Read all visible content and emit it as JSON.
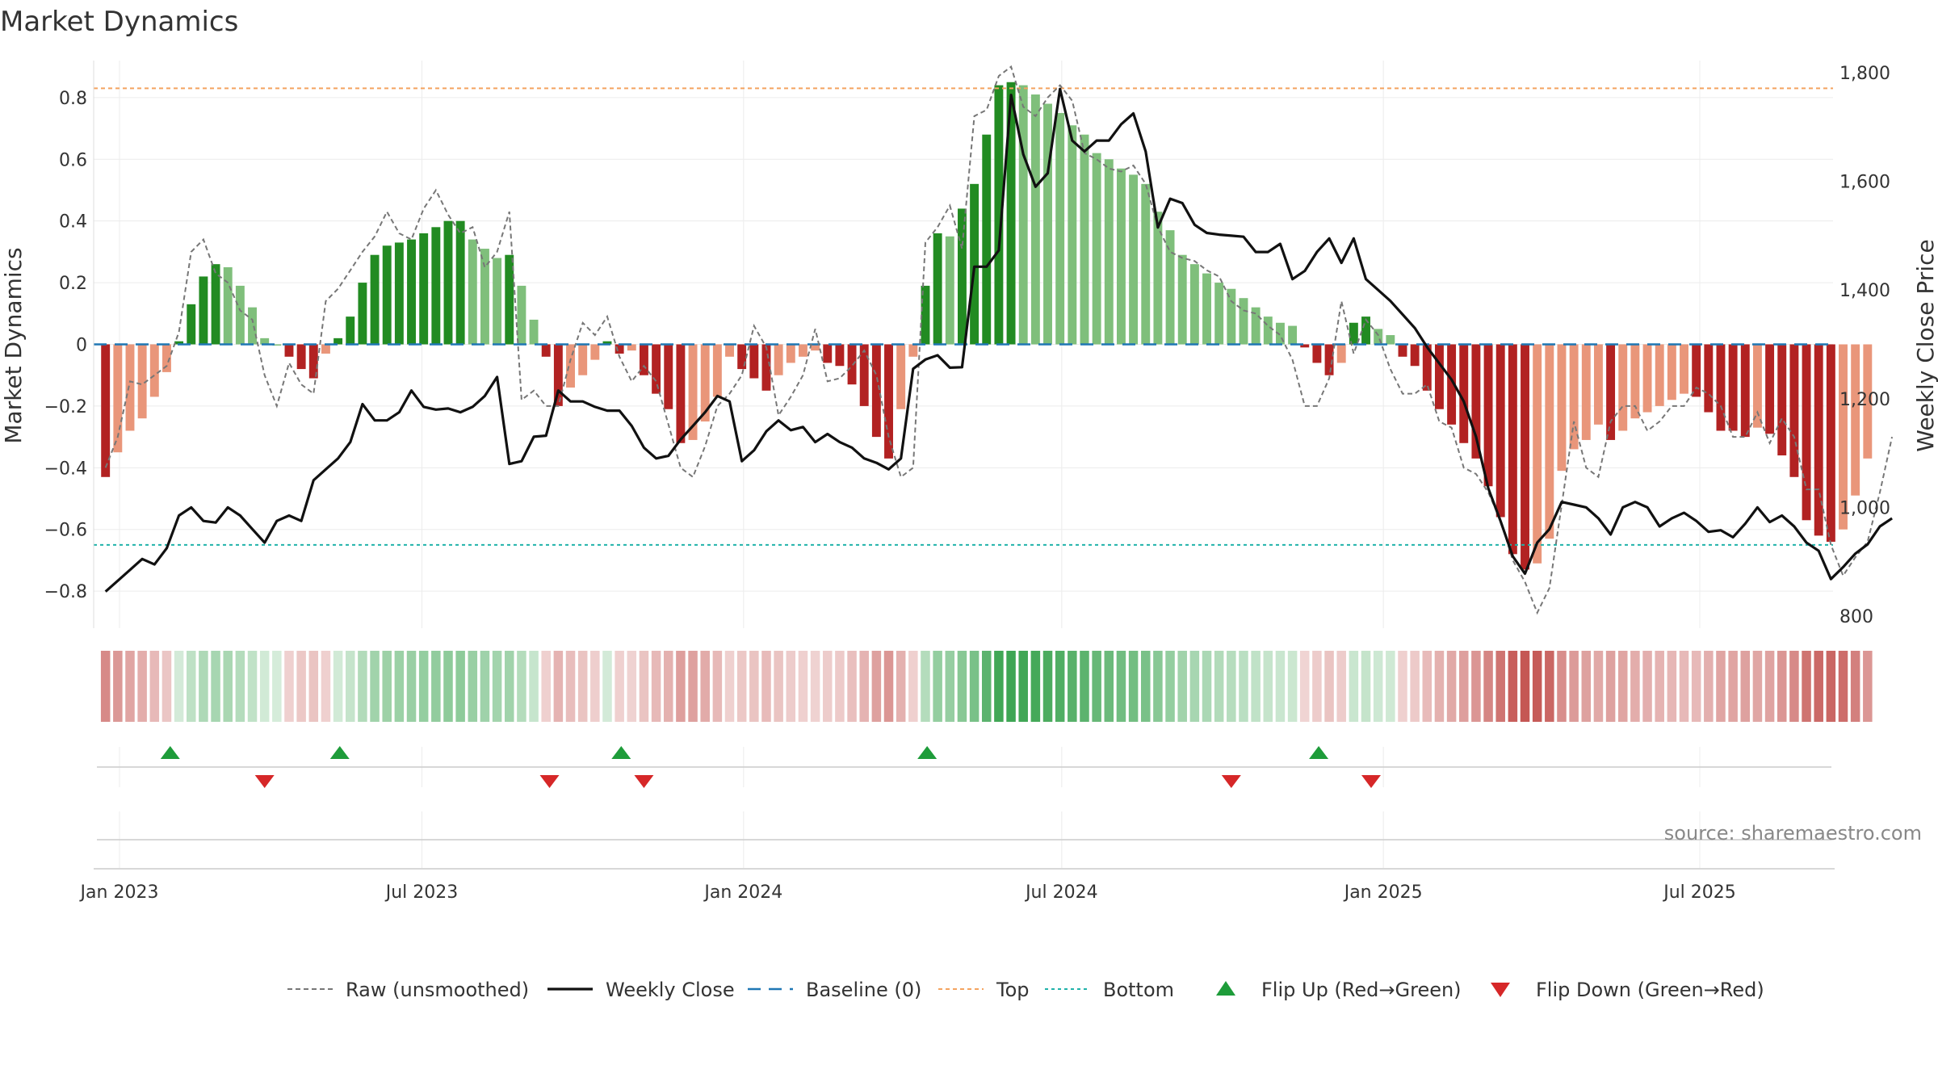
{
  "chart_data": {
    "type": "bar",
    "title": "Market Dynamics",
    "ylabel": "Market Dynamics",
    "y2label": "Weekly Close Price",
    "ylim": [
      -0.92,
      0.92
    ],
    "y2lim": [
      800,
      1800
    ],
    "x_start": "2023-01-01",
    "x_step_days": 7,
    "x_ticks": [
      {
        "date": "2023-01-09",
        "label": "Jan 2023"
      },
      {
        "date": "2023-07-01",
        "label": "Jul 2023"
      },
      {
        "date": "2024-01-01",
        "label": "Jan 2024"
      },
      {
        "date": "2024-07-01",
        "label": "Jul 2024"
      },
      {
        "date": "2025-01-01",
        "label": "Jan 2025"
      },
      {
        "date": "2025-07-01",
        "label": "Jul 2025"
      }
    ],
    "y_ticks": [
      -0.8,
      -0.6,
      -0.4,
      -0.2,
      0,
      0.2,
      0.4,
      0.6,
      0.8
    ],
    "y_tick_labels": [
      "−0.8",
      "−0.6",
      "−0.4",
      "−0.2",
      "0",
      "0.2",
      "0.4",
      "0.6",
      "0.8"
    ],
    "y2_ticks": [
      800,
      1000,
      1200,
      1400,
      1600,
      1800
    ],
    "y2_tick_labels": [
      "800",
      "1,000",
      "1,200",
      "1,400",
      "1,600",
      "1,800"
    ],
    "top_level": 0.83,
    "bottom_level": -0.65,
    "smoothed": [
      -0.43,
      -0.35,
      -0.28,
      -0.24,
      -0.17,
      -0.09,
      0.01,
      0.13,
      0.22,
      0.26,
      0.25,
      0.19,
      0.12,
      0.02,
      0.0,
      -0.04,
      -0.08,
      -0.11,
      -0.03,
      0.02,
      0.09,
      0.2,
      0.29,
      0.32,
      0.33,
      0.34,
      0.36,
      0.38,
      0.4,
      0.4,
      0.34,
      0.31,
      0.28,
      0.29,
      0.19,
      0.08,
      -0.04,
      -0.2,
      -0.14,
      -0.1,
      -0.05,
      0.01,
      -0.03,
      -0.02,
      -0.1,
      -0.16,
      -0.21,
      -0.32,
      -0.31,
      -0.25,
      -0.17,
      -0.04,
      -0.08,
      -0.11,
      -0.15,
      -0.1,
      -0.06,
      -0.04,
      -0.02,
      -0.06,
      -0.07,
      -0.13,
      -0.2,
      -0.3,
      -0.37,
      -0.21,
      -0.04,
      0.19,
      0.36,
      0.35,
      0.44,
      0.52,
      0.68,
      0.84,
      0.85,
      0.84,
      0.81,
      0.78,
      0.75,
      0.71,
      0.68,
      0.62,
      0.6,
      0.57,
      0.55,
      0.52,
      0.43,
      0.37,
      0.29,
      0.26,
      0.23,
      0.2,
      0.18,
      0.15,
      0.12,
      0.09,
      0.07,
      0.06,
      -0.01,
      -0.06,
      -0.1,
      -0.06,
      0.07,
      0.09,
      0.05,
      0.03,
      -0.04,
      -0.07,
      -0.15,
      -0.21,
      -0.26,
      -0.32,
      -0.37,
      -0.46,
      -0.56,
      -0.68,
      -0.73,
      -0.71,
      -0.63,
      -0.41,
      -0.34,
      -0.31,
      -0.26,
      -0.31,
      -0.28,
      -0.24,
      -0.22,
      -0.2,
      -0.18,
      -0.16,
      -0.17,
      -0.22,
      -0.28,
      -0.28,
      -0.3,
      -0.27,
      -0.29,
      -0.36,
      -0.43,
      -0.57,
      -0.62,
      -0.64,
      -0.6,
      -0.49,
      -0.37
    ],
    "raw": [
      -0.4,
      -0.3,
      -0.12,
      -0.13,
      -0.1,
      -0.07,
      0.04,
      0.3,
      0.34,
      0.23,
      0.2,
      0.11,
      0.08,
      -0.1,
      -0.2,
      -0.06,
      -0.13,
      -0.16,
      0.14,
      0.18,
      0.24,
      0.3,
      0.35,
      0.43,
      0.36,
      0.34,
      0.44,
      0.5,
      0.42,
      0.36,
      0.38,
      0.25,
      0.3,
      0.43,
      -0.18,
      -0.15,
      -0.2,
      -0.2,
      -0.05,
      0.07,
      0.03,
      0.09,
      -0.04,
      -0.12,
      -0.07,
      -0.12,
      -0.26,
      -0.4,
      -0.43,
      -0.33,
      -0.2,
      -0.16,
      -0.1,
      0.06,
      -0.01,
      -0.23,
      -0.17,
      -0.1,
      0.05,
      -0.12,
      -0.11,
      -0.07,
      -0.02,
      -0.1,
      -0.3,
      -0.43,
      -0.4,
      0.33,
      0.38,
      0.45,
      0.31,
      0.74,
      0.76,
      0.87,
      0.9,
      0.77,
      0.74,
      0.8,
      0.84,
      0.79,
      0.62,
      0.6,
      0.57,
      0.56,
      0.58,
      0.52,
      0.38,
      0.3,
      0.28,
      0.27,
      0.24,
      0.22,
      0.14,
      0.11,
      0.1,
      0.06,
      0.03,
      -0.05,
      -0.2,
      -0.2,
      -0.11,
      0.14,
      -0.03,
      0.08,
      0.03,
      -0.08,
      -0.16,
      -0.16,
      -0.13,
      -0.25,
      -0.27,
      -0.4,
      -0.42,
      -0.48,
      -0.57,
      -0.7,
      -0.77,
      -0.87,
      -0.79,
      -0.52,
      -0.25,
      -0.4,
      -0.43,
      -0.25,
      -0.2,
      -0.2,
      -0.28,
      -0.25,
      -0.2,
      -0.2,
      -0.14,
      -0.16,
      -0.2,
      -0.3,
      -0.3,
      -0.22,
      -0.32,
      -0.24,
      -0.3,
      -0.47,
      -0.47,
      -0.65,
      -0.75,
      -0.69,
      -0.64,
      -0.48,
      -0.3
    ],
    "price": [
      845,
      865,
      885,
      905,
      895,
      925,
      985,
      1000,
      975,
      972,
      1000,
      985,
      960,
      935,
      975,
      985,
      975,
      1050,
      1070,
      1090,
      1120,
      1190,
      1160,
      1160,
      1175,
      1215,
      1185,
      1180,
      1182,
      1175,
      1185,
      1205,
      1240,
      1080,
      1085,
      1130,
      1132,
      1215,
      1195,
      1195,
      1185,
      1178,
      1178,
      1150,
      1110,
      1090,
      1095,
      1125,
      1150,
      1175,
      1205,
      1195,
      1085,
      1105,
      1140,
      1160,
      1142,
      1148,
      1120,
      1135,
      1120,
      1110,
      1090,
      1082,
      1070,
      1090,
      1255,
      1272,
      1280,
      1257,
      1258,
      1443,
      1443,
      1473,
      1759,
      1650,
      1590,
      1615,
      1770,
      1675,
      1655,
      1675,
      1675,
      1705,
      1725,
      1655,
      1515,
      1568,
      1560,
      1520,
      1505,
      1502,
      1500,
      1498,
      1470,
      1470,
      1485,
      1420,
      1435,
      1470,
      1495,
      1450,
      1495,
      1420,
      1400,
      1380,
      1355,
      1330,
      1295,
      1265,
      1235,
      1195,
      1130,
      1035,
      975,
      910,
      878,
      935,
      960,
      1010,
      1005,
      1000,
      980,
      950,
      1000,
      1010,
      1000,
      965,
      980,
      990,
      975,
      955,
      958,
      945,
      970,
      1000,
      973,
      985,
      965,
      935,
      920,
      868,
      890,
      915,
      932,
      965,
      980
    ],
    "markers": {
      "flip_up": [
        "2023-02-07",
        "2023-05-15",
        "2023-10-23",
        "2024-04-15",
        "2024-11-25"
      ],
      "flip_down": [
        "2023-04-02",
        "2023-09-12",
        "2023-11-05",
        "2024-10-06",
        "2024-12-25"
      ]
    },
    "legend": {
      "position": "bottom",
      "entries": [
        "Raw (unsmoothed)",
        "Weekly Close",
        "Baseline (0)",
        "Top",
        "Bottom",
        "Flip Up (Red→Green)",
        "Flip Down (Green→Red)"
      ]
    },
    "source": "source: sharemaestro.com",
    "colors": {
      "strong_green": "#228b22",
      "light_green": "#7fbf7b",
      "strong_red": "#b22222",
      "light_red": "#e9967a",
      "top_line": "#f4a460",
      "bottom_line": "#20b2aa",
      "baseline": "#1f77b4",
      "price": "#111111",
      "raw": "#777777",
      "marker_up": "#1e9c3a",
      "marker_down": "#d62728",
      "heat_green": "#2e9e45",
      "heat_red": "#b8322e"
    }
  }
}
